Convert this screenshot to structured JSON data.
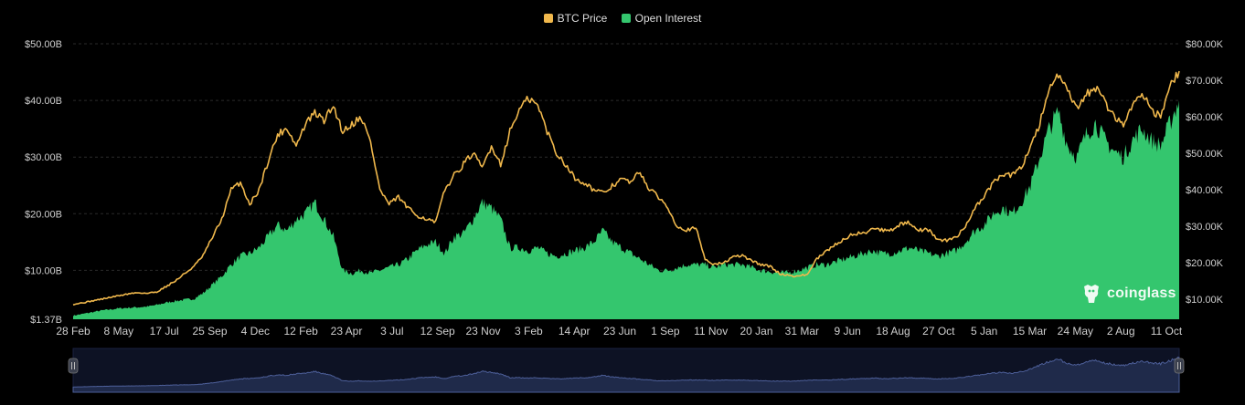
{
  "legend": {
    "btc_label": "BTC Price",
    "oi_label": "Open Interest"
  },
  "watermark": {
    "text": "coinglass"
  },
  "colors": {
    "background": "#000000",
    "price_line": "#f0b84c",
    "open_interest_fill": "#34c66e",
    "navigator_fill": "#1f2a4a",
    "navigator_line": "#4d5f99",
    "grid": "#2a2a2a",
    "axis_text": "#cfcfcf"
  },
  "icons": {
    "watermark_icon": "coinglass-mascot-icon"
  },
  "chart_data": {
    "type": "area",
    "title": "",
    "x_tick_labels": [
      "28 Feb",
      "8 May",
      "17 Jul",
      "25 Sep",
      "4 Dec",
      "12 Feb",
      "23 Apr",
      "3 Jul",
      "12 Sep",
      "23 Nov",
      "3 Feb",
      "14 Apr",
      "23 Jun",
      "1 Sep",
      "11 Nov",
      "20 Jan",
      "31 Mar",
      "9 Jun",
      "18 Aug",
      "27 Oct",
      "5 Jan",
      "15 Mar",
      "24 May",
      "2 Aug",
      "11 Oct"
    ],
    "y_left": {
      "label": "",
      "tick_labels": [
        "$1.37B",
        "$10.00B",
        "$20.00B",
        "$30.00B",
        "$40.00B",
        "$50.00B"
      ],
      "tick_values": [
        1.37,
        10,
        20,
        30,
        40,
        50
      ],
      "range": [
        1.37,
        50
      ],
      "unit": "B USD"
    },
    "y_right": {
      "label": "",
      "tick_labels": [
        "$10.00K",
        "$20.00K",
        "$30.00K",
        "$40.00K",
        "$50.00K",
        "$60.00K",
        "$70.00K",
        "$80.00K"
      ],
      "tick_values": [
        10,
        20,
        30,
        40,
        50,
        60,
        70,
        80
      ],
      "range": [
        4.5,
        80
      ],
      "unit": "K USD"
    },
    "grid": true,
    "legend_position": "top-center",
    "series": [
      {
        "name": "BTC Price",
        "axis": "right",
        "chart_type": "line",
        "values": [
          8.6,
          9.0,
          9.5,
          10.0,
          10.5,
          11.0,
          11.5,
          11.8,
          11.6,
          12.0,
          13.5,
          15.0,
          17.0,
          19.0,
          22.0,
          27.0,
          32.0,
          40.0,
          42.0,
          36.0,
          40.0,
          48.0,
          55.0,
          57.0,
          52.0,
          58.0,
          61.0,
          59.0,
          63.0,
          56.0,
          58.0,
          60.0,
          53.0,
          40.0,
          36.0,
          38.0,
          35.0,
          33.0,
          32.0,
          31.0,
          40.0,
          44.0,
          47.0,
          50.0,
          46.0,
          52.0,
          47.0,
          56.0,
          62.0,
          65.0,
          63.0,
          56.0,
          50.0,
          47.0,
          43.0,
          42.0,
          40.0,
          39.0,
          41.0,
          43.0,
          42.0,
          45.0,
          40.0,
          38.0,
          35.0,
          30.0,
          29.0,
          29.5,
          21.0,
          19.5,
          20.0,
          21.5,
          22.0,
          20.5,
          19.5,
          19.0,
          17.0,
          16.5,
          16.3,
          16.8,
          21.0,
          23.0,
          25.0,
          26.5,
          28.0,
          28.0,
          29.5,
          29.0,
          29.0,
          30.5,
          31.0,
          29.0,
          29.0,
          26.5,
          26.0,
          27.0,
          30.0,
          35.0,
          38.0,
          42.0,
          44.0,
          44.0,
          46.0,
          52.0,
          58.0,
          68.0,
          71.0,
          67.0,
          62.0,
          66.0,
          68.0,
          64.0,
          60.0,
          58.0,
          63.0,
          67.0,
          62.0,
          60.0,
          68.0,
          72.5
        ]
      },
      {
        "name": "Open Interest",
        "axis": "left",
        "chart_type": "area",
        "values": [
          2.0,
          2.3,
          2.6,
          2.9,
          3.1,
          3.3,
          3.4,
          3.5,
          3.6,
          3.9,
          4.3,
          4.6,
          4.8,
          5.0,
          6.0,
          7.5,
          9.0,
          11.0,
          12.5,
          13.0,
          14.0,
          16.0,
          18.0,
          17.0,
          19.0,
          20.0,
          22.0,
          19.0,
          16.0,
          10.0,
          9.5,
          10.0,
          9.5,
          10.0,
          10.5,
          11.0,
          12.0,
          13.5,
          14.5,
          15.0,
          13.0,
          16.0,
          16.5,
          19.0,
          22.0,
          21.0,
          19.0,
          14.0,
          14.0,
          13.5,
          14.0,
          13.0,
          12.5,
          13.0,
          13.5,
          14.0,
          15.0,
          17.0,
          15.0,
          14.0,
          13.0,
          12.0,
          11.0,
          10.0,
          10.0,
          10.5,
          11.0,
          11.0,
          11.0,
          10.5,
          11.0,
          11.0,
          11.0,
          10.5,
          10.0,
          9.8,
          9.5,
          9.6,
          10.0,
          10.5,
          11.0,
          11.0,
          11.5,
          12.0,
          12.5,
          13.0,
          13.5,
          13.0,
          13.0,
          13.5,
          14.0,
          13.5,
          13.0,
          12.5,
          13.0,
          13.5,
          15.0,
          17.0,
          18.0,
          20.0,
          21.0,
          20.0,
          22.0,
          25.0,
          30.0,
          35.0,
          38.0,
          32.0,
          30.0,
          34.0,
          36.0,
          33.0,
          31.0,
          30.0,
          33.0,
          35.0,
          33.0,
          32.0,
          36.0,
          40.0
        ]
      }
    ]
  }
}
